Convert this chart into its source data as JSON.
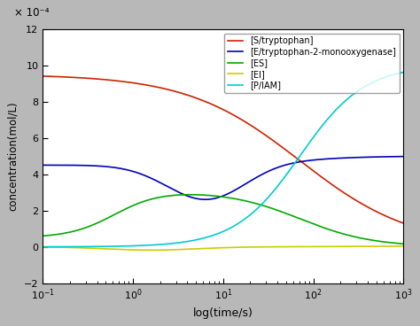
{
  "title": "",
  "xlabel": "log(time/s)",
  "ylabel": "concentration(mol/L)",
  "y_scale_label": "× 10⁻⁴",
  "xlim_log": [
    -1,
    3
  ],
  "ylim": [
    -2,
    12
  ],
  "yticks": [
    -2,
    0,
    2,
    4,
    6,
    8,
    10,
    12
  ],
  "background_color": "#b8b8b8",
  "plot_bg_color": "#ffffff",
  "legend_entries": [
    "[S/tryptophan]",
    "[E/tryptophan-2-monooxygenase]",
    "[ES]",
    "[EI]",
    "[P/IAM]"
  ],
  "line_colors": [
    "#cc2200",
    "#0000bb",
    "#00aa00",
    "#cccc00",
    "#00cccc"
  ],
  "line_width": 1.2
}
